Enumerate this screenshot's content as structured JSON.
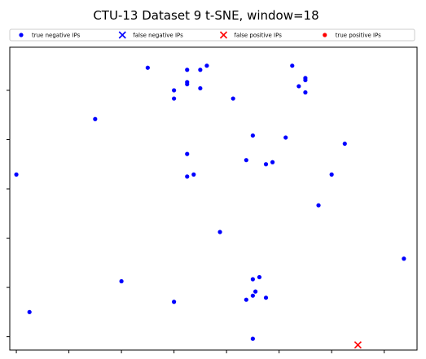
{
  "chart_data": {
    "type": "scatter",
    "title": "CTU-13 Dataset 9 t-SNE, window=18",
    "xlabel": "",
    "ylabel": "",
    "grid": false,
    "legend_position": "top",
    "series": [
      {
        "name": "true negative IPs",
        "marker": "dot",
        "color": "#0000ff",
        "points": [
          [
            0.0,
            8.5
          ],
          [
            0.1,
            1.8
          ],
          [
            0.6,
            11.2
          ],
          [
            0.8,
            3.3
          ],
          [
            1.0,
            13.7
          ],
          [
            1.2,
            2.3
          ],
          [
            1.2,
            12.6
          ],
          [
            1.3,
            12.9
          ],
          [
            1.3,
            13.0
          ],
          [
            1.3,
            13.6
          ],
          [
            1.4,
            12.7
          ],
          [
            1.4,
            13.6
          ],
          [
            1.2,
            12.2
          ],
          [
            1.3,
            8.4
          ],
          [
            1.3,
            9.5
          ],
          [
            1.35,
            8.5
          ],
          [
            1.45,
            13.8
          ],
          [
            1.55,
            5.7
          ],
          [
            1.65,
            12.2
          ],
          [
            1.8,
            10.4
          ],
          [
            1.75,
            9.2
          ],
          [
            1.8,
            3.4
          ],
          [
            1.85,
            3.5
          ],
          [
            1.8,
            2.6
          ],
          [
            1.82,
            2.8
          ],
          [
            1.75,
            2.4
          ],
          [
            1.8,
            0.5
          ],
          [
            1.9,
            9.0
          ],
          [
            1.95,
            9.1
          ],
          [
            1.9,
            2.5
          ],
          [
            2.05,
            10.3
          ],
          [
            2.1,
            13.8
          ],
          [
            2.15,
            12.8
          ],
          [
            2.2,
            12.5
          ],
          [
            2.2,
            13.1
          ],
          [
            2.2,
            13.2
          ],
          [
            2.3,
            7.0
          ],
          [
            2.4,
            8.5
          ],
          [
            2.5,
            10.0
          ],
          [
            2.95,
            4.4
          ]
        ]
      },
      {
        "name": "false negative IPs",
        "marker": "x",
        "color": "#0000ff",
        "points": []
      },
      {
        "name": "false positive IPs",
        "marker": "x",
        "color": "#ff0000",
        "points": [
          [
            2.6,
            0.2
          ]
        ]
      },
      {
        "name": "true positive IPs",
        "marker": "dot",
        "color": "#ff0000",
        "points": []
      }
    ],
    "xlim": [
      -0.05,
      3.05
    ],
    "ylim": [
      -0.05,
      14.7
    ],
    "x_ticks": [
      0,
      0.4,
      0.8,
      1.2,
      1.6,
      2.0,
      2.4,
      2.8
    ],
    "y_ticks": [
      0.6,
      3.0,
      5.4,
      7.8,
      10.2,
      12.6,
      15.0
    ]
  }
}
